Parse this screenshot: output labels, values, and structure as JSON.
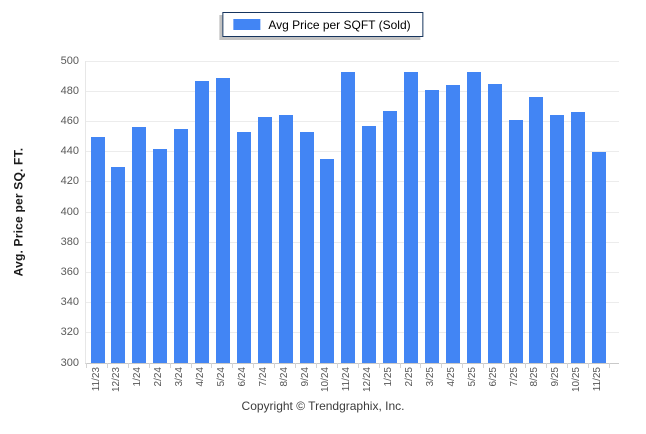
{
  "legend": {
    "label": "Avg Price per SQFT (Sold)",
    "swatch_color": "#4285f4"
  },
  "ylabel": "Avg. Price per SQ. FT.",
  "footer": {
    "copyright": "Copyright © Trendgraphix, Inc."
  },
  "colors": {
    "bar": "#4285f4",
    "gridline": "#ececec",
    "axis": "#c9c9c9",
    "tick_text": "#595959",
    "legend_border": "#17355e"
  },
  "chart_data": {
    "type": "bar",
    "title": "Avg Price per SQFT (Sold)",
    "ylabel": "Avg. Price per SQ. FT.",
    "legend_position": "top-center",
    "grid": true,
    "ylim": [
      300,
      500
    ],
    "ytick_step": 20,
    "categories": [
      "11/23",
      "12/23",
      "1/24",
      "2/24",
      "3/24",
      "4/24",
      "5/24",
      "6/24",
      "7/24",
      "8/24",
      "9/24",
      "10/24",
      "11/24",
      "12/24",
      "1/25",
      "2/25",
      "3/25",
      "4/25",
      "5/25",
      "6/25",
      "7/25",
      "8/25",
      "9/25",
      "10/25",
      "11/25"
    ],
    "values": [
      450,
      430,
      456,
      442,
      455,
      487,
      489,
      453,
      463,
      464,
      453,
      435,
      493,
      457,
      467,
      493,
      481,
      484,
      493,
      485,
      461,
      476,
      464,
      466,
      440
    ]
  }
}
